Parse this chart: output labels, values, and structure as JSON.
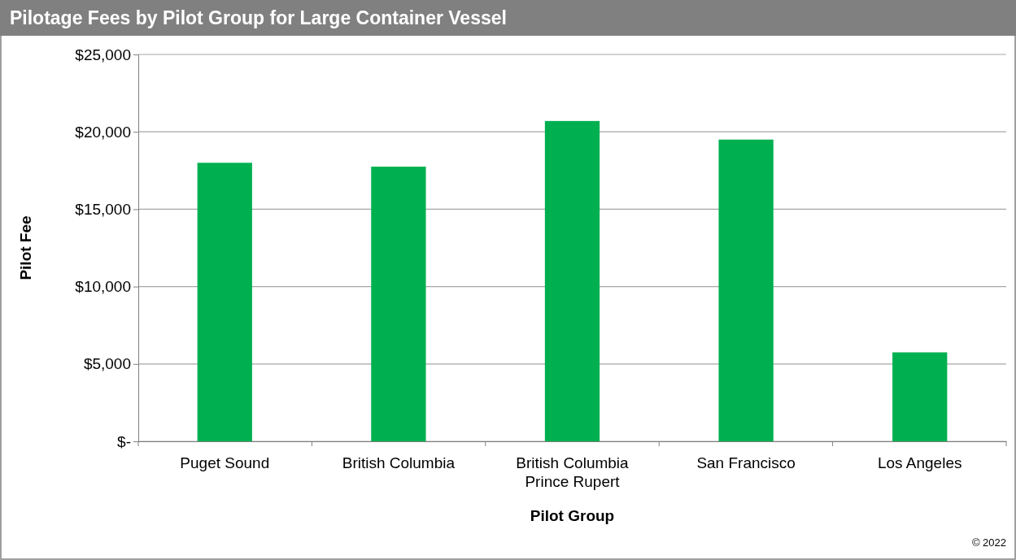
{
  "chart_data": {
    "type": "bar",
    "title": "Pilotage Fees by Pilot Group for Large Container Vessel",
    "xlabel": "Pilot Group",
    "ylabel": "Pilot Fee",
    "categories": [
      "Puget Sound",
      "British Columbia",
      "British Columbia\nPrince Rupert",
      "San Francisco",
      "Los Angeles"
    ],
    "values": [
      18000,
      17750,
      20700,
      19500,
      5750
    ],
    "color": "#00b050",
    "ylim": [
      0,
      25000
    ],
    "yticks": [
      {
        "value": 0,
        "label": "$-"
      },
      {
        "value": 5000,
        "label": "$5,000"
      },
      {
        "value": 10000,
        "label": "$10,000"
      },
      {
        "value": 15000,
        "label": "$15,000"
      },
      {
        "value": 20000,
        "label": "$20,000"
      },
      {
        "value": 25000,
        "label": "$25,000"
      }
    ],
    "grid": "y",
    "annotations": [
      "© 2022"
    ]
  }
}
